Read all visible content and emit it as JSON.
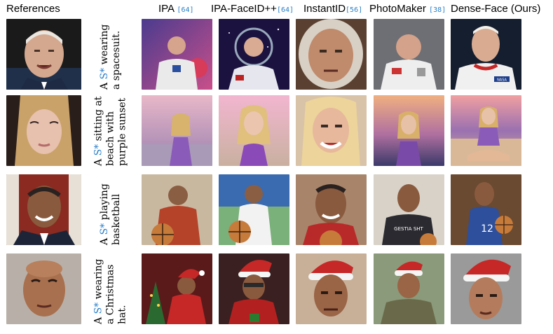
{
  "headers": {
    "references": "References",
    "methods": [
      {
        "name": "IPA",
        "cite": "[64]"
      },
      {
        "name": "IPA-FaceID++",
        "cite": "[64]"
      },
      {
        "name": "InstantID",
        "cite": "[56]"
      },
      {
        "name": "PhotoMaker",
        "cite": "[38]"
      },
      {
        "name": "Dense-Face (Ours)",
        "cite": ""
      }
    ]
  },
  "rows": [
    {
      "prefix": "A",
      "token": "S*",
      "text": "wearing a spacesuit.",
      "theme": "spacesuit"
    },
    {
      "prefix": "A",
      "token": "S*",
      "text": "sitting at beach with purple sunset",
      "theme": "beach"
    },
    {
      "prefix": "A",
      "token": "S*",
      "text": "playing basketball",
      "theme": "basketball"
    },
    {
      "prefix": "A",
      "token": "S*",
      "text": "wearing a Christmas hat.",
      "theme": "christmas"
    }
  ],
  "image_texts": {
    "nasa_badge": "NASA",
    "jersey_number": "12",
    "shirt_text": "GESTIA SHT"
  },
  "colors": {
    "accent": "#2a7fc9",
    "skin": "#c99a7a",
    "skin_dark": "#6b4430",
    "suit": "#e8e8e8",
    "purple": "#8a5bb8",
    "santa_red": "#c62828",
    "court": "#c77b3a",
    "jersey_blue": "#2d4f9c"
  }
}
